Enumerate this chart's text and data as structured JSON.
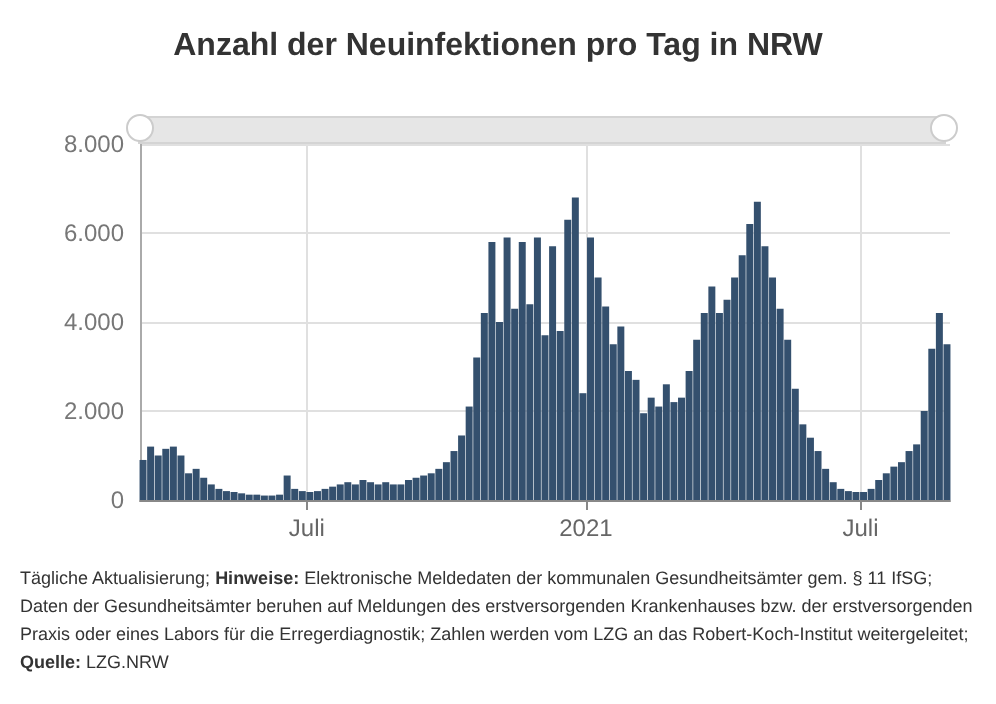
{
  "chart_data": {
    "type": "bar",
    "title": "Anzahl der Neuinfektionen pro Tag in NRW",
    "x": [
      "2020-03-15",
      "2020-03-20",
      "2020-03-25",
      "2020-03-30",
      "2020-04-04",
      "2020-04-09",
      "2020-04-14",
      "2020-04-19",
      "2020-04-24",
      "2020-04-29",
      "2020-05-04",
      "2020-05-09",
      "2020-05-14",
      "2020-05-19",
      "2020-05-24",
      "2020-05-29",
      "2020-06-03",
      "2020-06-08",
      "2020-06-13",
      "2020-06-18",
      "2020-06-23",
      "2020-06-28",
      "2020-07-03",
      "2020-07-08",
      "2020-07-13",
      "2020-07-18",
      "2020-07-23",
      "2020-07-28",
      "2020-08-02",
      "2020-08-07",
      "2020-08-12",
      "2020-08-17",
      "2020-08-22",
      "2020-08-27",
      "2020-09-01",
      "2020-09-06",
      "2020-09-11",
      "2020-09-16",
      "2020-09-21",
      "2020-09-26",
      "2020-10-01",
      "2020-10-06",
      "2020-10-11",
      "2020-10-16",
      "2020-10-21",
      "2020-10-26",
      "2020-10-31",
      "2020-11-05",
      "2020-11-10",
      "2020-11-15",
      "2020-11-20",
      "2020-11-25",
      "2020-11-30",
      "2020-12-05",
      "2020-12-10",
      "2020-12-15",
      "2020-12-20",
      "2020-12-25",
      "2020-12-30",
      "2021-01-04",
      "2021-01-09",
      "2021-01-14",
      "2021-01-19",
      "2021-01-24",
      "2021-01-29",
      "2021-02-03",
      "2021-02-08",
      "2021-02-13",
      "2021-02-18",
      "2021-02-23",
      "2021-02-28",
      "2021-03-05",
      "2021-03-10",
      "2021-03-15",
      "2021-03-20",
      "2021-03-25",
      "2021-03-30",
      "2021-04-04",
      "2021-04-09",
      "2021-04-14",
      "2021-04-19",
      "2021-04-24",
      "2021-04-29",
      "2021-05-04",
      "2021-05-09",
      "2021-05-14",
      "2021-05-19",
      "2021-05-24",
      "2021-05-29",
      "2021-06-03",
      "2021-06-08",
      "2021-06-13",
      "2021-06-18",
      "2021-06-23",
      "2021-06-28",
      "2021-07-03",
      "2021-07-08",
      "2021-07-13",
      "2021-07-18",
      "2021-07-23",
      "2021-07-28",
      "2021-08-02",
      "2021-08-07",
      "2021-08-12",
      "2021-08-17",
      "2021-08-22",
      "2021-08-27"
    ],
    "values": [
      900,
      1200,
      1000,
      1150,
      1200,
      1000,
      600,
      700,
      500,
      350,
      250,
      200,
      180,
      150,
      120,
      120,
      100,
      100,
      120,
      550,
      250,
      200,
      180,
      200,
      250,
      300,
      350,
      400,
      350,
      450,
      400,
      350,
      400,
      350,
      350,
      450,
      500,
      550,
      600,
      700,
      850,
      1100,
      1450,
      2100,
      3200,
      4200,
      5800,
      4000,
      5900,
      4300,
      5800,
      4400,
      5900,
      3700,
      5700,
      3800,
      6300,
      6800,
      2400,
      5900,
      5000,
      4350,
      3500,
      3900,
      2900,
      2700,
      1950,
      2300,
      2100,
      2600,
      2200,
      2300,
      2900,
      3600,
      4200,
      4800,
      4200,
      4500,
      5000,
      5500,
      6200,
      6700,
      5700,
      5000,
      4300,
      3600,
      2500,
      1700,
      1400,
      1100,
      700,
      400,
      250,
      200,
      180,
      180,
      250,
      450,
      600,
      750,
      850,
      1100,
      1250,
      2000,
      3400,
      4200,
      3500
    ],
    "color": "#34506e",
    "xlim": [
      "2020-03-13",
      "2021-08-29"
    ],
    "xticks": [
      {
        "value": "2020-07-01",
        "label": "Juli"
      },
      {
        "value": "2021-01-01",
        "label": "2021"
      },
      {
        "value": "2021-07-01",
        "label": "Juli"
      }
    ],
    "ylim": [
      0,
      8000
    ],
    "yticks": [
      {
        "value": 0,
        "label": "0"
      },
      {
        "value": 2000,
        "label": "2.000"
      },
      {
        "value": 4000,
        "label": "4.000"
      },
      {
        "value": 6000,
        "label": "6.000"
      },
      {
        "value": 8000,
        "label": "8.000"
      }
    ],
    "grid": true,
    "annotations": [
      "Tägliche Aktualisierung; Hinweise: Elektronische Meldedaten der kommunalen Gesundheitsämter gem. § 11 IfSG; Daten der Gesundheitsämter beruhen auf Meldungen des erstversorgenden Krankenhauses bzw. der erstversorgenden Praxis oder eines Labors für die Erregerdiagnostik; Zahlen werden vom LZG an das Robert-Koch-Institut weitergeleitet;",
      "Quelle: LZG.NRW"
    ]
  }
}
